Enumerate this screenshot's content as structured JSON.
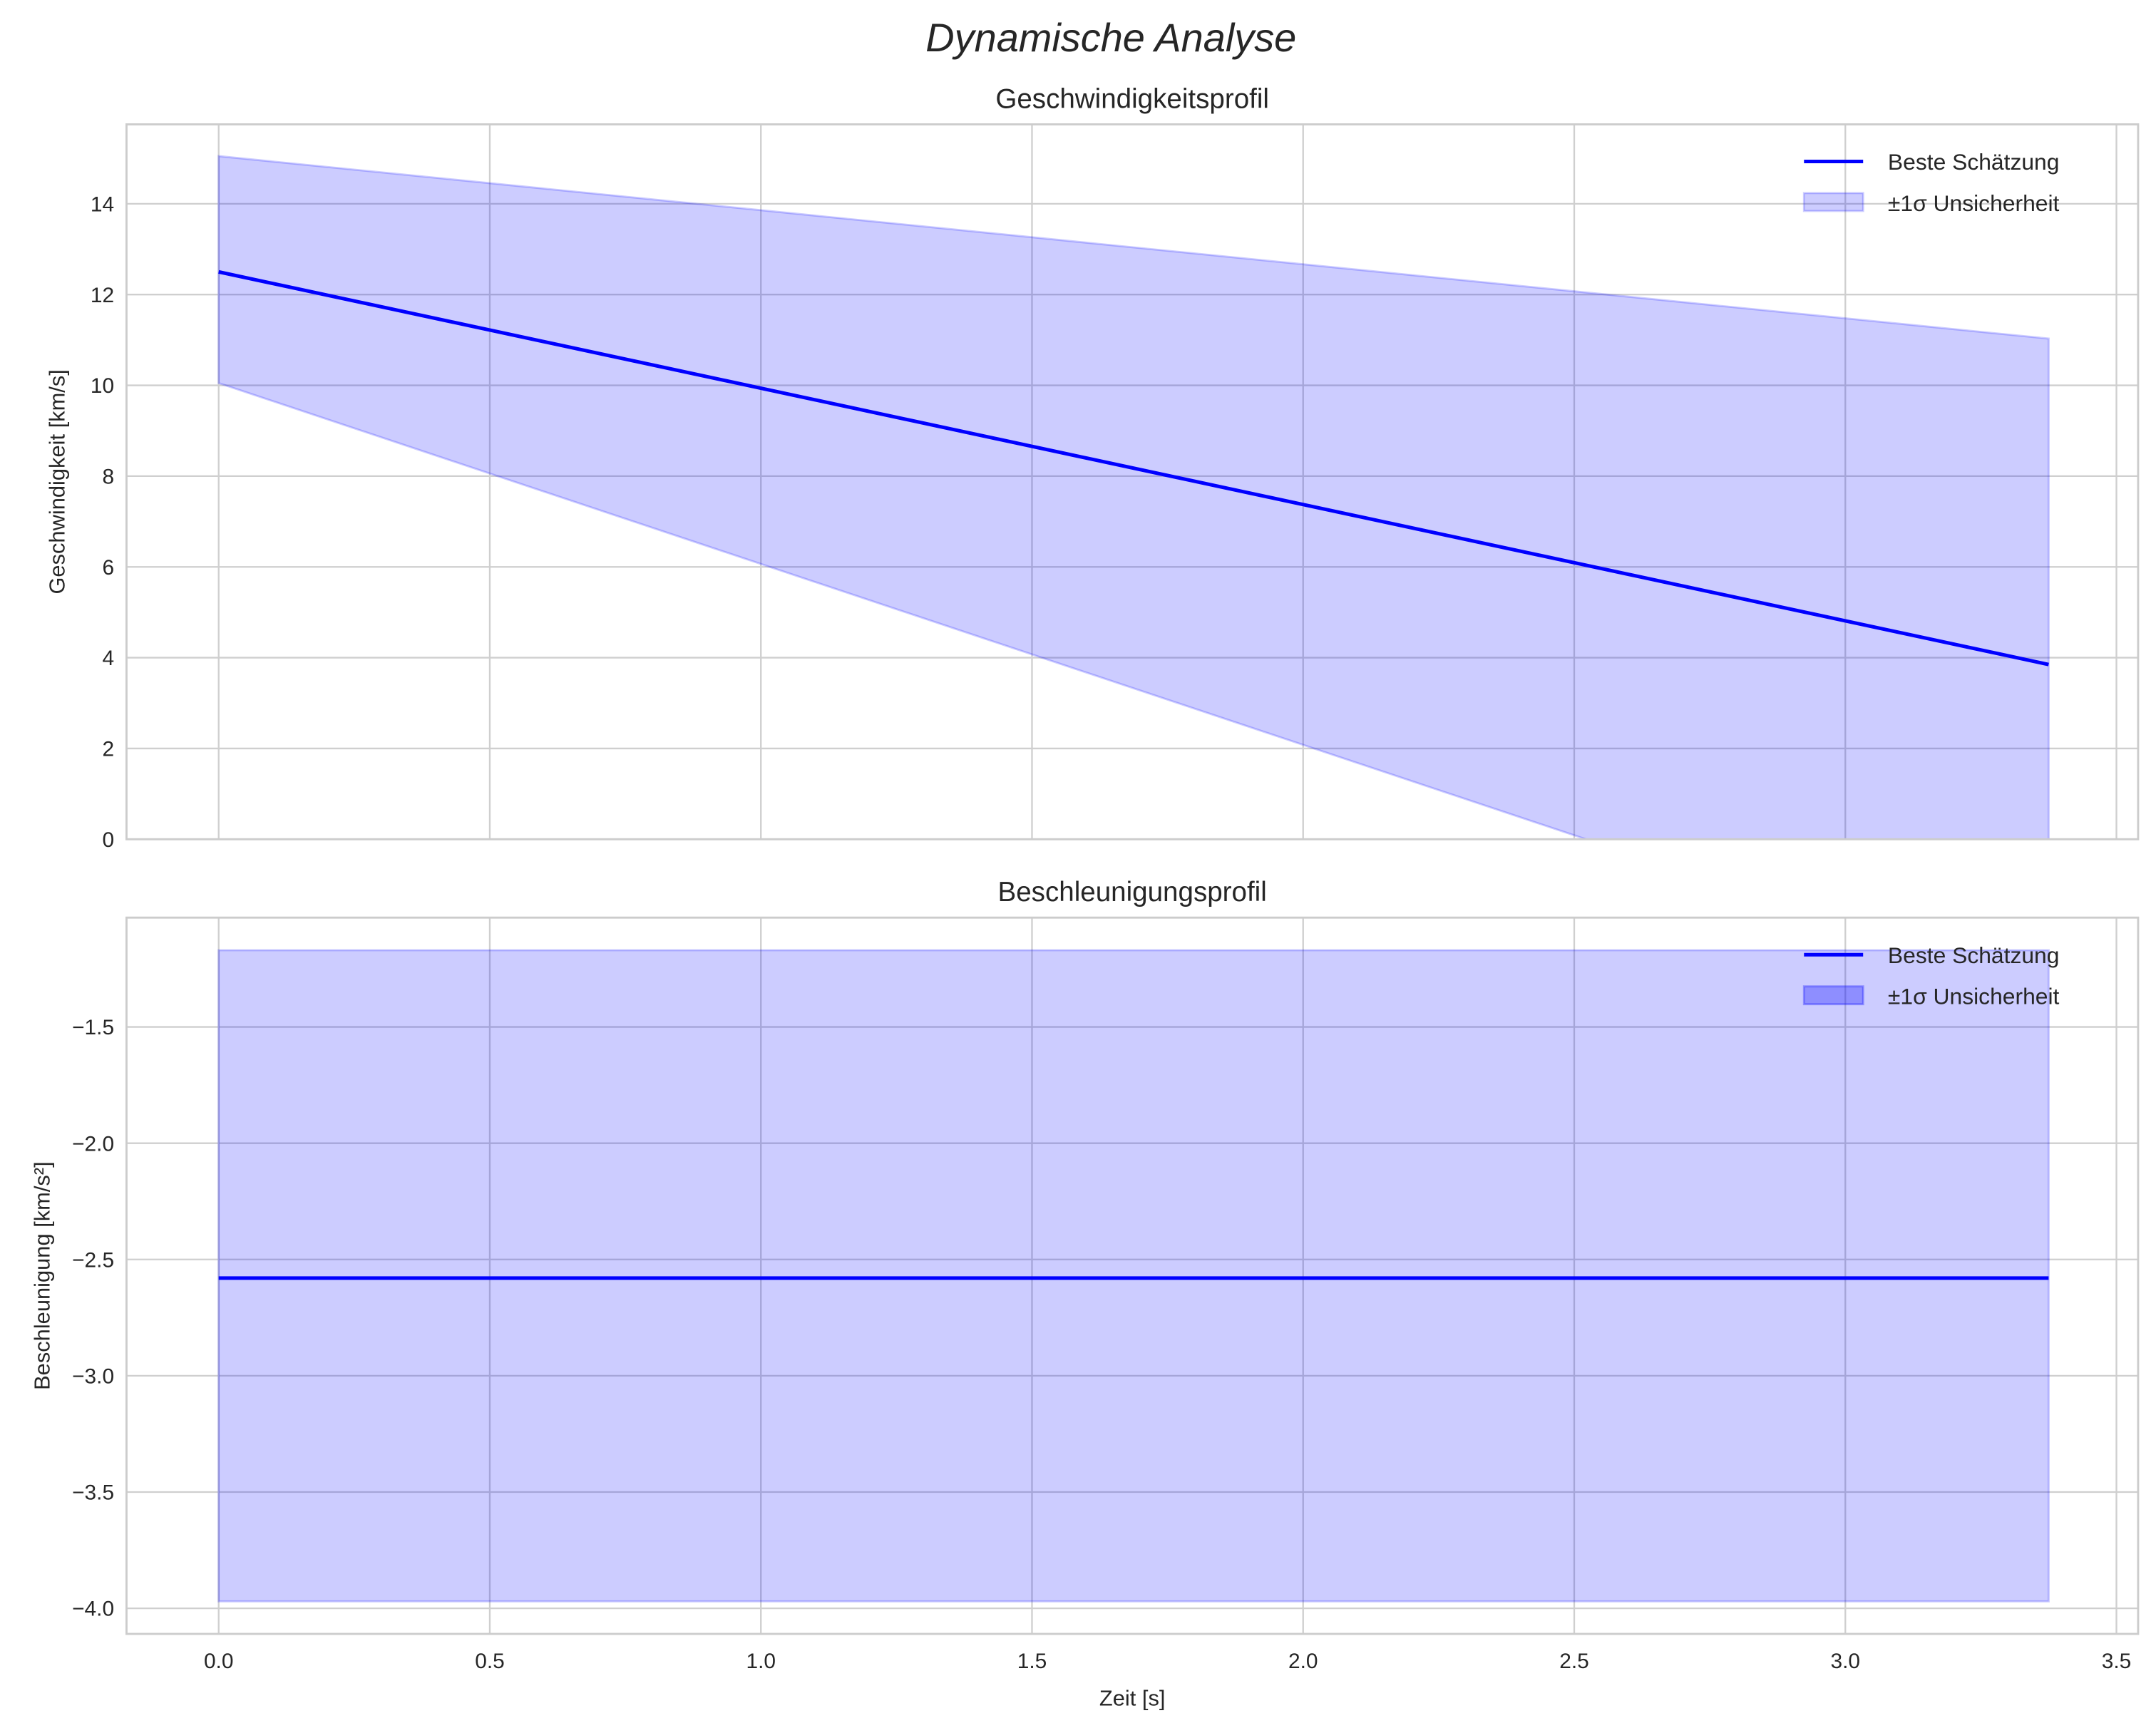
{
  "chart_data": [
    {
      "type": "line",
      "suptitle": "Dynamische Analyse",
      "title": "Geschwindigkeitsprofil",
      "xlabel": "",
      "ylabel": "Geschwindigkeit [km/s]",
      "xlim": [
        -0.17,
        3.54
      ],
      "ylim": [
        0,
        15.75
      ],
      "xticks": [
        0.0,
        0.5,
        1.0,
        1.5,
        2.0,
        2.5,
        3.0,
        3.5
      ],
      "xtick_labels": [],
      "yticks": [
        0,
        2,
        4,
        6,
        8,
        10,
        12,
        14
      ],
      "ytick_labels": [
        "0",
        "2",
        "4",
        "6",
        "8",
        "10",
        "12",
        "14"
      ],
      "grid": true,
      "legend_position": "top-right",
      "series": [
        {
          "name": "Beste Schätzung",
          "kind": "line",
          "color": "#0000ff",
          "x": [
            0,
            3.375
          ],
          "y": [
            12.5,
            3.85
          ]
        },
        {
          "name": "±1σ Unsicherheit",
          "kind": "band",
          "color": "#0000ff",
          "alpha": 0.2,
          "x": [
            0,
            3.375
          ],
          "upper": [
            15.05,
            11.03
          ],
          "lower": [
            10.05,
            -3.4
          ]
        }
      ]
    },
    {
      "type": "line",
      "title": "Beschleunigungsprofil",
      "xlabel": "Zeit [s]",
      "ylabel": "Beschleunigung [km/s²]",
      "xlim": [
        -0.17,
        3.54
      ],
      "ylim": [
        -4.11,
        -1.03
      ],
      "xticks": [
        0.0,
        0.5,
        1.0,
        1.5,
        2.0,
        2.5,
        3.0,
        3.5
      ],
      "xtick_labels": [
        "0.0",
        "0.5",
        "1.0",
        "1.5",
        "2.0",
        "2.5",
        "3.0",
        "3.5"
      ],
      "yticks": [
        -4.0,
        -3.5,
        -3.0,
        -2.5,
        -2.0,
        -1.5
      ],
      "ytick_labels": [
        "−4.0",
        "−3.5",
        "−3.0",
        "−2.5",
        "−2.0",
        "−1.5"
      ],
      "grid": true,
      "legend_position": "top-right",
      "series": [
        {
          "name": "Beste Schätzung",
          "kind": "line",
          "color": "#0000ff",
          "x": [
            0,
            3.375
          ],
          "y": [
            -2.58,
            -2.58
          ]
        },
        {
          "name": "±1σ Unsicherheit",
          "kind": "band",
          "color": "#0000ff",
          "alpha": 0.2,
          "legend_alpha": 0.3,
          "x": [
            0,
            3.375
          ],
          "upper": [
            -1.17,
            -1.17
          ],
          "lower": [
            -3.97,
            -3.97
          ]
        }
      ]
    }
  ]
}
